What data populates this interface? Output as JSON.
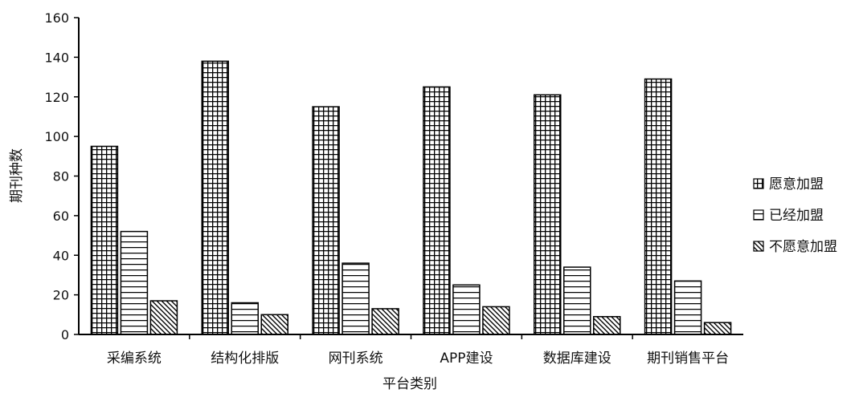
{
  "chart_data": {
    "type": "bar",
    "title": "",
    "xlabel": "平台类别",
    "ylabel": "期刊种数",
    "ylim": [
      0,
      160
    ],
    "yticks": [
      0,
      20,
      40,
      60,
      80,
      100,
      120,
      140,
      160
    ],
    "categories": [
      "采编系统",
      "结构化排版",
      "网刊系统",
      "APP建设",
      "数据库建设",
      "期刊销售平台"
    ],
    "series": [
      {
        "name": "愿意加盟",
        "pattern": "grid",
        "values": [
          95,
          138,
          115,
          125,
          121,
          129
        ]
      },
      {
        "name": "已经加盟",
        "pattern": "horizontal",
        "values": [
          52,
          16,
          36,
          25,
          34,
          27
        ]
      },
      {
        "name": "不愿意加盟",
        "pattern": "diagonal",
        "values": [
          17,
          10,
          13,
          14,
          9,
          6
        ]
      }
    ],
    "legend_position": "right",
    "grid": false,
    "colors": {
      "stroke": "#000000",
      "background": "#ffffff"
    }
  }
}
